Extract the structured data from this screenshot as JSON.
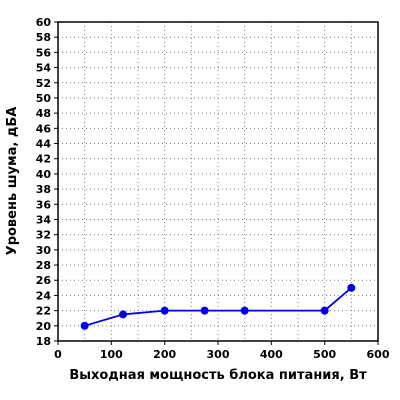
{
  "chart_data": {
    "type": "line",
    "xlabel": "Выходная мощность блока питания, Вт",
    "ylabel": "Уровень шума, дБА",
    "xlim": [
      0,
      600
    ],
    "ylim": [
      18,
      60
    ],
    "x_ticks": [
      0,
      100,
      200,
      300,
      400,
      500,
      600
    ],
    "y_ticks": [
      18,
      20,
      22,
      24,
      26,
      28,
      30,
      32,
      34,
      36,
      38,
      40,
      42,
      44,
      46,
      48,
      50,
      52,
      54,
      56,
      58,
      60
    ],
    "x_tick_labels": [
      "0",
      "100",
      "200",
      "300",
      "400",
      "500",
      "600"
    ],
    "y_tick_labels": [
      "18",
      "20",
      "22",
      "24",
      "26",
      "28",
      "30",
      "32",
      "34",
      "36",
      "38",
      "40",
      "42",
      "44",
      "46",
      "48",
      "50",
      "52",
      "54",
      "56",
      "58",
      "60"
    ],
    "grid": true,
    "series": [
      {
        "color": "#0000ee",
        "x": [
          50,
          122,
          200,
          275,
          350,
          500,
          550
        ],
        "y": [
          20,
          21.5,
          22,
          22,
          22,
          22,
          25
        ]
      }
    ]
  }
}
